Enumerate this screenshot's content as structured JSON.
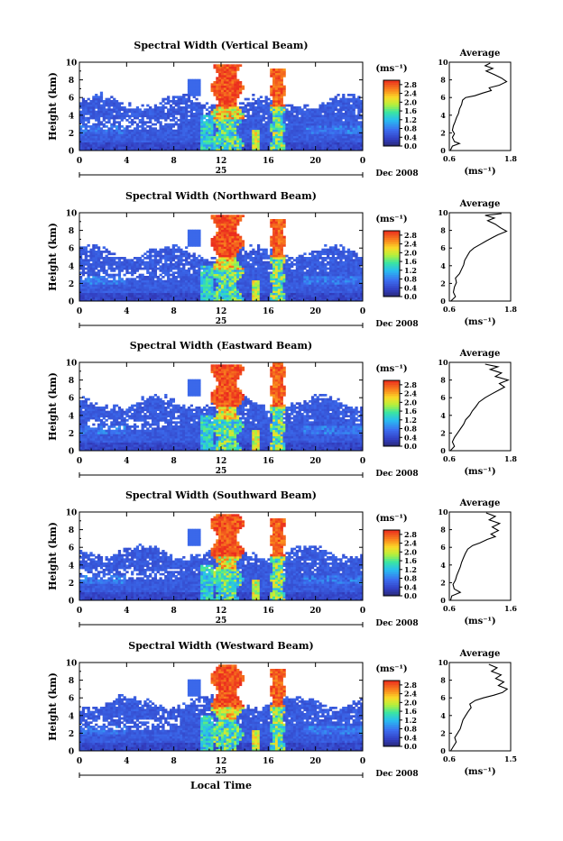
{
  "chart_data": [
    {
      "type": "heatmap",
      "title": "Spectral Width (Vertical Beam)",
      "ylabel": "Height (km)",
      "y_ticks": [
        "0",
        "2",
        "4",
        "6",
        "8",
        "10"
      ],
      "x_ticks": [
        "0",
        "4",
        "8",
        "12",
        "16",
        "20",
        "0"
      ],
      "ylim": [
        0,
        10
      ],
      "xlim": [
        0,
        24
      ],
      "date_label": "25",
      "month_label": "Dec 2008",
      "colorbar": {
        "unit": "(ms⁻¹)",
        "ticks": [
          "2.8",
          "2.4",
          "2.0",
          "1.6",
          "1.2",
          "0.8",
          "0.4",
          "0.0"
        ],
        "range": [
          0,
          3.0
        ]
      },
      "average": {
        "title": "Average",
        "xlabel": "(ms⁻¹)",
        "x_ticks": [
          "0.6",
          "1.8"
        ],
        "xlim": [
          0.6,
          1.8
        ],
        "ylim": [
          0,
          10
        ],
        "profile": [
          [
            0.62,
            0.0
          ],
          [
            0.66,
            0.5
          ],
          [
            0.8,
            0.8
          ],
          [
            0.7,
            1.0
          ],
          [
            0.66,
            1.5
          ],
          [
            0.7,
            1.9
          ],
          [
            0.66,
            2.3
          ],
          [
            0.68,
            2.8
          ],
          [
            0.71,
            3.2
          ],
          [
            0.74,
            3.7
          ],
          [
            0.78,
            4.2
          ],
          [
            0.8,
            4.7
          ],
          [
            0.84,
            5.2
          ],
          [
            0.86,
            5.7
          ],
          [
            0.92,
            6.0
          ],
          [
            1.1,
            6.2
          ],
          [
            1.25,
            6.5
          ],
          [
            1.42,
            6.8
          ],
          [
            1.38,
            7.1
          ],
          [
            1.58,
            7.4
          ],
          [
            1.72,
            7.8
          ],
          [
            1.62,
            8.2
          ],
          [
            1.48,
            8.6
          ],
          [
            1.32,
            9.0
          ],
          [
            1.45,
            9.3
          ],
          [
            1.3,
            9.6
          ],
          [
            1.4,
            9.9
          ]
        ]
      }
    },
    {
      "type": "heatmap",
      "title": "Spectral Width (Northward Beam)",
      "ylabel": "Height (km)",
      "y_ticks": [
        "0",
        "2",
        "4",
        "6",
        "8",
        "10"
      ],
      "x_ticks": [
        "0",
        "4",
        "8",
        "12",
        "16",
        "20",
        "0"
      ],
      "ylim": [
        0,
        10
      ],
      "xlim": [
        0,
        24
      ],
      "date_label": "25",
      "month_label": "Dec 2008",
      "colorbar": {
        "unit": "(ms⁻¹)",
        "ticks": [
          "2.8",
          "2.4",
          "2.0",
          "1.6",
          "1.2",
          "0.8",
          "0.4",
          "0.0"
        ],
        "range": [
          0,
          3.0
        ]
      },
      "average": {
        "title": "Average",
        "xlabel": "(ms⁻¹)",
        "x_ticks": [
          "0.6",
          "1.8"
        ],
        "xlim": [
          0.6,
          1.8
        ],
        "ylim": [
          0,
          10
        ],
        "profile": [
          [
            0.63,
            0.0
          ],
          [
            0.72,
            0.5
          ],
          [
            0.68,
            1.0
          ],
          [
            0.7,
            1.6
          ],
          [
            0.74,
            2.1
          ],
          [
            0.72,
            2.6
          ],
          [
            0.8,
            3.1
          ],
          [
            0.84,
            3.6
          ],
          [
            0.88,
            4.1
          ],
          [
            0.9,
            4.6
          ],
          [
            0.95,
            5.1
          ],
          [
            1.0,
            5.6
          ],
          [
            1.08,
            6.0
          ],
          [
            1.2,
            6.4
          ],
          [
            1.32,
            6.8
          ],
          [
            1.45,
            7.2
          ],
          [
            1.55,
            7.5
          ],
          [
            1.72,
            7.9
          ],
          [
            1.6,
            8.3
          ],
          [
            1.5,
            8.7
          ],
          [
            1.35,
            9.1
          ],
          [
            1.48,
            9.4
          ],
          [
            1.3,
            9.7
          ],
          [
            1.62,
            9.9
          ]
        ]
      }
    },
    {
      "type": "heatmap",
      "title": "Spectral Width (Eastward Beam)",
      "ylabel": "Height (km)",
      "y_ticks": [
        "0",
        "2",
        "4",
        "6",
        "8",
        "10"
      ],
      "x_ticks": [
        "0",
        "4",
        "8",
        "12",
        "16",
        "20",
        "0"
      ],
      "ylim": [
        0,
        10
      ],
      "xlim": [
        0,
        24
      ],
      "date_label": "25",
      "month_label": "Dec 2008",
      "colorbar": {
        "unit": "(ms⁻¹)",
        "ticks": [
          "2.8",
          "2.4",
          "2.0",
          "1.6",
          "1.2",
          "0.8",
          "0.4",
          "0.0"
        ],
        "range": [
          0,
          3.0
        ]
      },
      "average": {
        "title": "Average",
        "xlabel": "(ms⁻¹)",
        "x_ticks": [
          "0.6",
          "1.8"
        ],
        "xlim": [
          0.6,
          1.8
        ],
        "ylim": [
          0,
          10
        ],
        "profile": [
          [
            0.62,
            0.0
          ],
          [
            0.7,
            0.5
          ],
          [
            0.66,
            1.0
          ],
          [
            0.7,
            1.5
          ],
          [
            0.76,
            2.0
          ],
          [
            0.82,
            2.5
          ],
          [
            0.88,
            3.0
          ],
          [
            0.92,
            3.5
          ],
          [
            1.0,
            4.0
          ],
          [
            1.05,
            4.5
          ],
          [
            1.12,
            5.0
          ],
          [
            1.18,
            5.5
          ],
          [
            1.3,
            6.0
          ],
          [
            1.42,
            6.4
          ],
          [
            1.55,
            6.8
          ],
          [
            1.68,
            7.2
          ],
          [
            1.58,
            7.6
          ],
          [
            1.75,
            8.0
          ],
          [
            1.5,
            8.4
          ],
          [
            1.62,
            8.8
          ],
          [
            1.4,
            9.2
          ],
          [
            1.55,
            9.5
          ],
          [
            1.3,
            9.8
          ]
        ]
      }
    },
    {
      "type": "heatmap",
      "title": "Spectral Width (Southward Beam)",
      "ylabel": "Height (km)",
      "y_ticks": [
        "0",
        "2",
        "4",
        "6",
        "8",
        "10"
      ],
      "x_ticks": [
        "0",
        "4",
        "8",
        "12",
        "16",
        "20",
        "0"
      ],
      "ylim": [
        0,
        10
      ],
      "xlim": [
        0,
        24
      ],
      "date_label": "25",
      "month_label": "Dec 2008",
      "colorbar": {
        "unit": "(ms⁻¹)",
        "ticks": [
          "2.8",
          "2.4",
          "2.0",
          "1.6",
          "1.2",
          "0.8",
          "0.4",
          "0.0"
        ],
        "range": [
          0,
          3.0
        ]
      },
      "average": {
        "title": "Average",
        "xlabel": "(ms⁻¹)",
        "x_ticks": [
          "0.6",
          "1.6"
        ],
        "xlim": [
          0.6,
          1.6
        ],
        "ylim": [
          0,
          10
        ],
        "profile": [
          [
            0.62,
            0.0
          ],
          [
            0.64,
            0.5
          ],
          [
            0.78,
            0.9
          ],
          [
            0.68,
            1.3
          ],
          [
            0.66,
            1.8
          ],
          [
            0.7,
            2.3
          ],
          [
            0.72,
            2.8
          ],
          [
            0.75,
            3.3
          ],
          [
            0.78,
            3.8
          ],
          [
            0.8,
            4.3
          ],
          [
            0.83,
            4.8
          ],
          [
            0.86,
            5.3
          ],
          [
            0.9,
            5.8
          ],
          [
            0.98,
            6.2
          ],
          [
            1.1,
            6.5
          ],
          [
            1.22,
            6.9
          ],
          [
            1.35,
            7.2
          ],
          [
            1.28,
            7.5
          ],
          [
            1.4,
            7.9
          ],
          [
            1.3,
            8.3
          ],
          [
            1.42,
            8.7
          ],
          [
            1.25,
            9.1
          ],
          [
            1.35,
            9.5
          ],
          [
            1.2,
            9.9
          ]
        ]
      }
    },
    {
      "type": "heatmap",
      "title": "Spectral Width (Westward Beam)",
      "ylabel": "Height (km)",
      "xlabel": "Local Time",
      "y_ticks": [
        "0",
        "2",
        "4",
        "6",
        "8",
        "10"
      ],
      "x_ticks": [
        "0",
        "4",
        "8",
        "12",
        "16",
        "20",
        "0"
      ],
      "ylim": [
        0,
        10
      ],
      "xlim": [
        0,
        24
      ],
      "date_label": "25",
      "month_label": "Dec 2008",
      "colorbar": {
        "unit": "(ms⁻¹)",
        "ticks": [
          "2.8",
          "2.4",
          "2.0",
          "1.6",
          "1.2",
          "0.8",
          "0.4",
          "0.0"
        ],
        "range": [
          0,
          3.0
        ]
      },
      "average": {
        "title": "Average",
        "xlabel": "(ms⁻¹)",
        "x_ticks": [
          "0.6",
          "1.5"
        ],
        "xlim": [
          0.6,
          1.5
        ],
        "ylim": [
          0,
          10
        ],
        "profile": [
          [
            0.62,
            0.0
          ],
          [
            0.66,
            0.5
          ],
          [
            0.7,
            1.0
          ],
          [
            0.68,
            1.5
          ],
          [
            0.72,
            2.0
          ],
          [
            0.76,
            2.5
          ],
          [
            0.78,
            3.0
          ],
          [
            0.8,
            3.5
          ],
          [
            0.84,
            4.0
          ],
          [
            0.88,
            4.5
          ],
          [
            0.92,
            4.9
          ],
          [
            0.9,
            5.3
          ],
          [
            0.98,
            5.7
          ],
          [
            1.1,
            6.0
          ],
          [
            1.25,
            6.3
          ],
          [
            1.38,
            6.6
          ],
          [
            1.45,
            7.0
          ],
          [
            1.32,
            7.4
          ],
          [
            1.4,
            7.8
          ],
          [
            1.28,
            8.2
          ],
          [
            1.36,
            8.6
          ],
          [
            1.22,
            9.0
          ],
          [
            1.3,
            9.4
          ],
          [
            1.18,
            9.8
          ]
        ]
      }
    }
  ]
}
